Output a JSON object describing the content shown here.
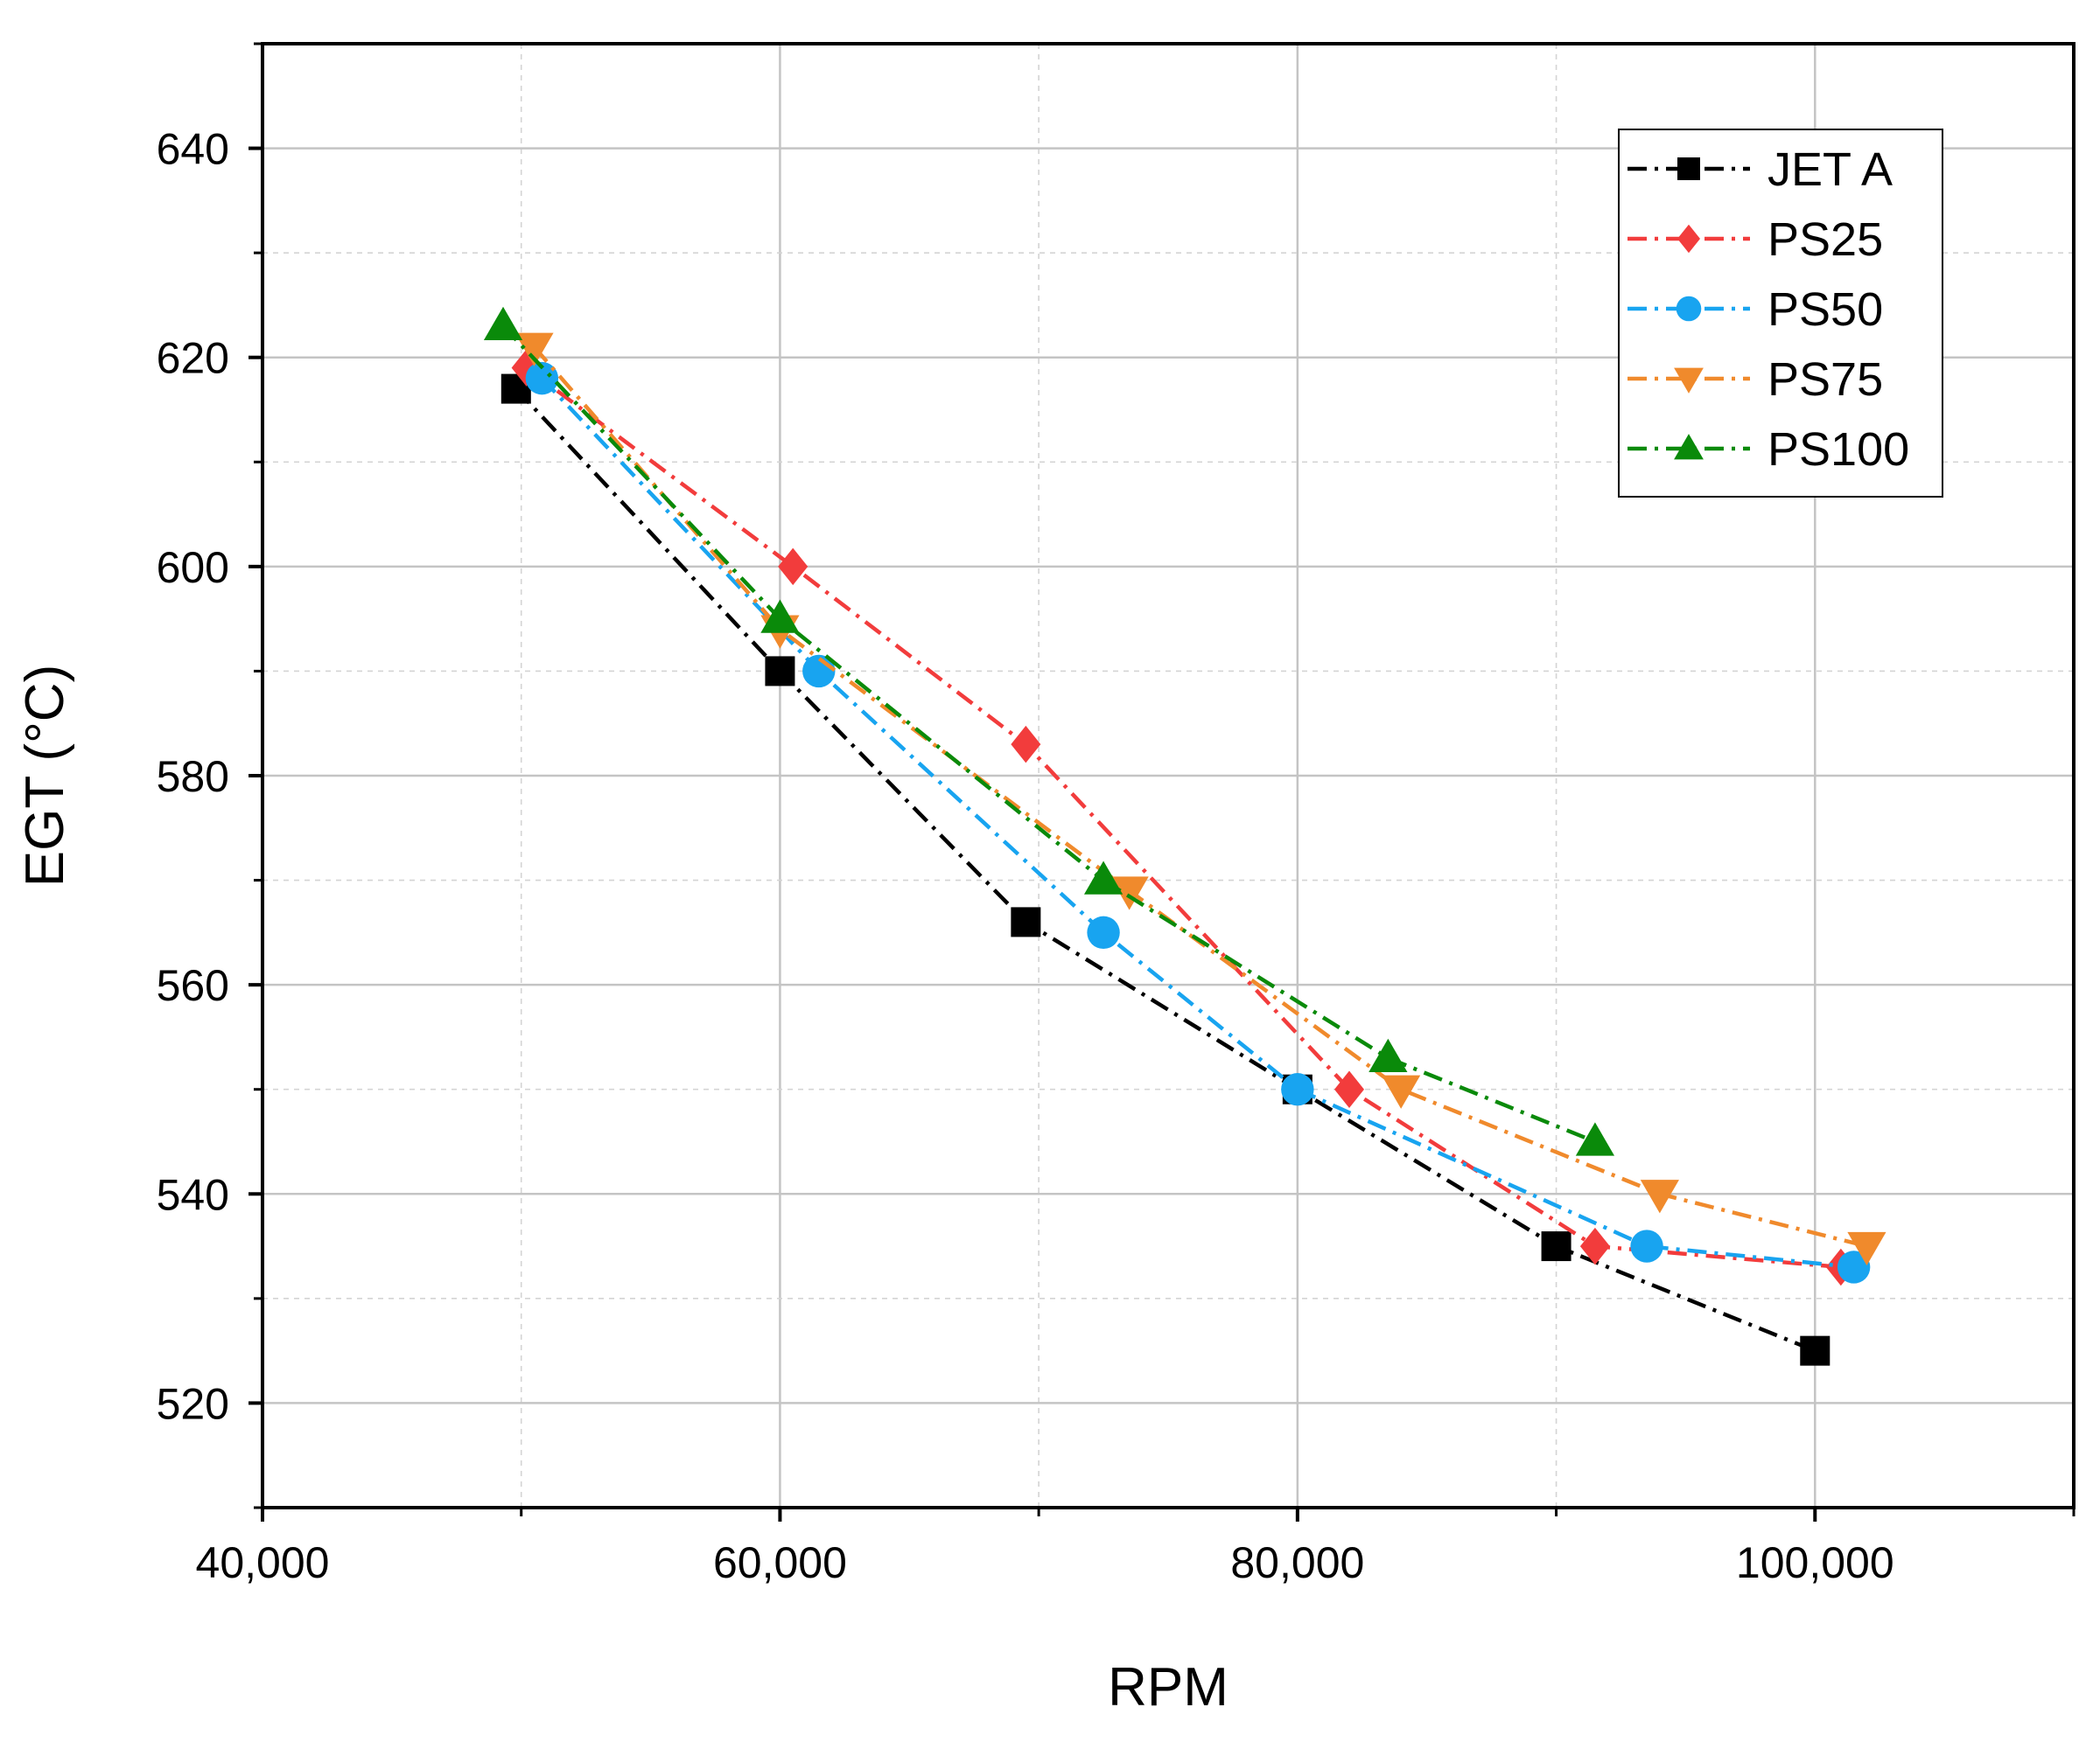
{
  "chart_data": {
    "type": "line",
    "title": "",
    "xlabel": "RPM",
    "ylabel": "EGT (°C)",
    "xlim": [
      40000,
      110000
    ],
    "ylim": [
      510,
      650
    ],
    "x_ticks": [
      40000,
      60000,
      80000,
      100000
    ],
    "x_tick_labels": [
      "40,000",
      "60,000",
      "80,000",
      "100,000"
    ],
    "x_minor_ticks": [
      50000,
      70000,
      90000,
      110000
    ],
    "y_ticks": [
      520,
      540,
      560,
      580,
      600,
      620,
      640
    ],
    "y_tick_labels": [
      "520",
      "540",
      "560",
      "580",
      "600",
      "620",
      "640"
    ],
    "y_minor_ticks": [
      510,
      530,
      550,
      570,
      590,
      610,
      630,
      650
    ],
    "grid": true,
    "legend_position": "top-right",
    "series": [
      {
        "name": "JET A",
        "color": "#000000",
        "marker": "square",
        "x": [
          49800,
          60000,
          69500,
          80000,
          90000,
          100000
        ],
        "y": [
          617,
          590,
          566,
          550,
          535,
          525
        ]
      },
      {
        "name": "PS25",
        "color": "#f23c3c",
        "marker": "diamond",
        "x": [
          50200,
          60500,
          69500,
          82000,
          91500,
          101000
        ],
        "y": [
          619,
          600,
          583,
          550,
          535,
          533
        ]
      },
      {
        "name": "PS50",
        "color": "#18a4f0",
        "marker": "circle",
        "x": [
          50800,
          61500,
          72500,
          80000,
          93500,
          101500
        ],
        "y": [
          618,
          590,
          565,
          550,
          535,
          533
        ]
      },
      {
        "name": "PS75",
        "color": "#f08a2c",
        "marker": "triangle-down",
        "x": [
          50500,
          60000,
          73500,
          84000,
          94000,
          102000
        ],
        "y": [
          621,
          594,
          569,
          550,
          540,
          535
        ]
      },
      {
        "name": "PS100",
        "color": "#0a8a0a",
        "marker": "triangle-up",
        "x": [
          49300,
          60000,
          72500,
          83500,
          91500
        ],
        "y": [
          623,
          595,
          570,
          553,
          545
        ]
      }
    ]
  }
}
